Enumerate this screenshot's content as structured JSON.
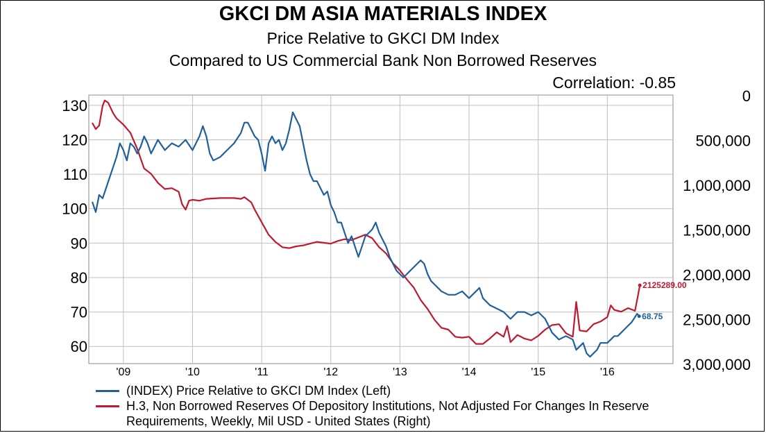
{
  "chart_data": {
    "type": "line",
    "title": "GKCI DM ASIA MATERIALS INDEX",
    "subtitle_lines": [
      "Price Relative to GKCI DM Index",
      "Compared to US Commercial Bank Non Borrowed Reserves"
    ],
    "annotation": "Correlation: -0.85",
    "x_ticks": [
      "'09",
      "'10",
      "'11",
      "'12",
      "'13",
      "'14",
      "'15",
      "'16"
    ],
    "x_range": [
      2008.5,
      2016.95
    ],
    "y_left": {
      "ticks": [
        130,
        120,
        110,
        100,
        90,
        80,
        70,
        60
      ],
      "range": [
        55,
        133
      ]
    },
    "y_right": {
      "ticks": [
        "0",
        "500,000",
        "1,000,000",
        "1,500,000",
        "2,000,000",
        "2,500,000",
        "3,000,000"
      ],
      "tick_values": [
        0,
        500000,
        1000000,
        1500000,
        2000000,
        2500000,
        3000000
      ],
      "inverted": true
    },
    "grid": true,
    "series": [
      {
        "name": "(INDEX) Price Relative to GKCI DM Index  (Left)",
        "axis": "left",
        "color": "#1F5F9B",
        "last_label": "68.75",
        "points": [
          [
            2008.55,
            102
          ],
          [
            2008.6,
            99
          ],
          [
            2008.65,
            104
          ],
          [
            2008.7,
            103
          ],
          [
            2008.75,
            106
          ],
          [
            2008.8,
            109
          ],
          [
            2008.85,
            112
          ],
          [
            2008.9,
            115
          ],
          [
            2008.95,
            119
          ],
          [
            2009.0,
            117
          ],
          [
            2009.05,
            114
          ],
          [
            2009.1,
            119
          ],
          [
            2009.15,
            118
          ],
          [
            2009.2,
            116
          ],
          [
            2009.25,
            118
          ],
          [
            2009.3,
            121
          ],
          [
            2009.35,
            119
          ],
          [
            2009.4,
            116
          ],
          [
            2009.45,
            118
          ],
          [
            2009.5,
            120
          ],
          [
            2009.6,
            117
          ],
          [
            2009.7,
            119
          ],
          [
            2009.8,
            118
          ],
          [
            2009.9,
            120
          ],
          [
            2010.0,
            117
          ],
          [
            2010.1,
            121
          ],
          [
            2010.15,
            124
          ],
          [
            2010.2,
            121
          ],
          [
            2010.25,
            116
          ],
          [
            2010.3,
            114
          ],
          [
            2010.4,
            115
          ],
          [
            2010.5,
            117
          ],
          [
            2010.6,
            119
          ],
          [
            2010.7,
            122
          ],
          [
            2010.75,
            125
          ],
          [
            2010.8,
            125
          ],
          [
            2010.85,
            123
          ],
          [
            2010.9,
            121
          ],
          [
            2010.95,
            120
          ],
          [
            2011.0,
            116
          ],
          [
            2011.05,
            111
          ],
          [
            2011.1,
            119
          ],
          [
            2011.15,
            121
          ],
          [
            2011.2,
            119
          ],
          [
            2011.25,
            120
          ],
          [
            2011.3,
            117
          ],
          [
            2011.35,
            119
          ],
          [
            2011.4,
            123
          ],
          [
            2011.45,
            128
          ],
          [
            2011.5,
            126
          ],
          [
            2011.55,
            124
          ],
          [
            2011.6,
            119
          ],
          [
            2011.65,
            114
          ],
          [
            2011.7,
            110
          ],
          [
            2011.75,
            108
          ],
          [
            2011.8,
            108
          ],
          [
            2011.85,
            106
          ],
          [
            2011.9,
            104
          ],
          [
            2011.95,
            105
          ],
          [
            2012.0,
            101
          ],
          [
            2012.05,
            99
          ],
          [
            2012.1,
            96
          ],
          [
            2012.15,
            96
          ],
          [
            2012.2,
            93
          ],
          [
            2012.25,
            90
          ],
          [
            2012.3,
            92
          ],
          [
            2012.35,
            89
          ],
          [
            2012.4,
            86
          ],
          [
            2012.45,
            89
          ],
          [
            2012.5,
            92
          ],
          [
            2012.55,
            93
          ],
          [
            2012.6,
            94
          ],
          [
            2012.65,
            96
          ],
          [
            2012.7,
            93
          ],
          [
            2012.75,
            91
          ],
          [
            2012.8,
            89
          ],
          [
            2012.85,
            86
          ],
          [
            2012.9,
            84
          ],
          [
            2012.95,
            82
          ],
          [
            2013.0,
            81
          ],
          [
            2013.05,
            80
          ],
          [
            2013.1,
            81
          ],
          [
            2013.15,
            82
          ],
          [
            2013.2,
            83
          ],
          [
            2013.25,
            84
          ],
          [
            2013.3,
            85
          ],
          [
            2013.35,
            84
          ],
          [
            2013.4,
            81
          ],
          [
            2013.45,
            79
          ],
          [
            2013.5,
            78
          ],
          [
            2013.55,
            77
          ],
          [
            2013.6,
            76
          ],
          [
            2013.7,
            75
          ],
          [
            2013.8,
            75
          ],
          [
            2013.9,
            76
          ],
          [
            2014.0,
            74
          ],
          [
            2014.1,
            76
          ],
          [
            2014.15,
            77
          ],
          [
            2014.2,
            74
          ],
          [
            2014.3,
            72
          ],
          [
            2014.4,
            71
          ],
          [
            2014.5,
            70
          ],
          [
            2014.6,
            68
          ],
          [
            2014.65,
            69
          ],
          [
            2014.7,
            70
          ],
          [
            2014.8,
            70
          ],
          [
            2014.9,
            69
          ],
          [
            2015.0,
            70
          ],
          [
            2015.05,
            69
          ],
          [
            2015.1,
            68
          ],
          [
            2015.2,
            64
          ],
          [
            2015.3,
            62
          ],
          [
            2015.4,
            63
          ],
          [
            2015.5,
            62
          ],
          [
            2015.55,
            59
          ],
          [
            2015.6,
            60
          ],
          [
            2015.65,
            61
          ],
          [
            2015.7,
            58
          ],
          [
            2015.75,
            57
          ],
          [
            2015.8,
            58
          ],
          [
            2015.85,
            59
          ],
          [
            2015.9,
            61
          ],
          [
            2016.0,
            61
          ],
          [
            2016.05,
            62
          ],
          [
            2016.1,
            63
          ],
          [
            2016.15,
            63
          ],
          [
            2016.2,
            64
          ],
          [
            2016.25,
            65
          ],
          [
            2016.3,
            66
          ],
          [
            2016.35,
            67
          ],
          [
            2016.4,
            68.5
          ],
          [
            2016.43,
            69.5
          ],
          [
            2016.46,
            68.75
          ]
        ]
      },
      {
        "name": "H.3, Non Borrowed Reserves Of Depository Institutions, Not Adjusted For Changes In Reserve Requirements, Weekly, Mil USD - United States  (Right)",
        "axis": "right",
        "color": "#C0182E",
        "last_label": "2125289.00",
        "points": [
          [
            2008.55,
            310000
          ],
          [
            2008.6,
            380000
          ],
          [
            2008.65,
            340000
          ],
          [
            2008.7,
            120000
          ],
          [
            2008.73,
            60000
          ],
          [
            2008.78,
            85000
          ],
          [
            2008.85,
            200000
          ],
          [
            2008.9,
            260000
          ],
          [
            2009.0,
            330000
          ],
          [
            2009.1,
            420000
          ],
          [
            2009.2,
            600000
          ],
          [
            2009.3,
            820000
          ],
          [
            2009.4,
            880000
          ],
          [
            2009.5,
            980000
          ],
          [
            2009.6,
            1050000
          ],
          [
            2009.7,
            1040000
          ],
          [
            2009.8,
            1080000
          ],
          [
            2009.85,
            1220000
          ],
          [
            2009.9,
            1280000
          ],
          [
            2009.95,
            1180000
          ],
          [
            2010.0,
            1170000
          ],
          [
            2010.1,
            1180000
          ],
          [
            2010.2,
            1160000
          ],
          [
            2010.4,
            1150000
          ],
          [
            2010.6,
            1150000
          ],
          [
            2010.7,
            1160000
          ],
          [
            2010.75,
            1140000
          ],
          [
            2010.8,
            1170000
          ],
          [
            2010.85,
            1200000
          ],
          [
            2010.9,
            1280000
          ],
          [
            2011.0,
            1420000
          ],
          [
            2011.1,
            1560000
          ],
          [
            2011.2,
            1640000
          ],
          [
            2011.3,
            1700000
          ],
          [
            2011.4,
            1710000
          ],
          [
            2011.5,
            1690000
          ],
          [
            2011.6,
            1680000
          ],
          [
            2011.7,
            1660000
          ],
          [
            2011.8,
            1640000
          ],
          [
            2011.9,
            1650000
          ],
          [
            2012.0,
            1660000
          ],
          [
            2012.1,
            1630000
          ],
          [
            2012.2,
            1610000
          ],
          [
            2012.3,
            1620000
          ],
          [
            2012.4,
            1590000
          ],
          [
            2012.5,
            1560000
          ],
          [
            2012.6,
            1600000
          ],
          [
            2012.7,
            1700000
          ],
          [
            2012.8,
            1770000
          ],
          [
            2012.9,
            1880000
          ],
          [
            2013.0,
            1960000
          ],
          [
            2013.1,
            2060000
          ],
          [
            2013.2,
            2150000
          ],
          [
            2013.3,
            2290000
          ],
          [
            2013.4,
            2390000
          ],
          [
            2013.5,
            2510000
          ],
          [
            2013.6,
            2600000
          ],
          [
            2013.7,
            2620000
          ],
          [
            2013.8,
            2700000
          ],
          [
            2013.9,
            2710000
          ],
          [
            2014.0,
            2700000
          ],
          [
            2014.1,
            2780000
          ],
          [
            2014.2,
            2780000
          ],
          [
            2014.3,
            2720000
          ],
          [
            2014.4,
            2650000
          ],
          [
            2014.5,
            2700000
          ],
          [
            2014.55,
            2580000
          ],
          [
            2014.6,
            2760000
          ],
          [
            2014.7,
            2680000
          ],
          [
            2014.8,
            2720000
          ],
          [
            2014.9,
            2740000
          ],
          [
            2015.0,
            2690000
          ],
          [
            2015.1,
            2620000
          ],
          [
            2015.2,
            2570000
          ],
          [
            2015.3,
            2560000
          ],
          [
            2015.4,
            2660000
          ],
          [
            2015.5,
            2700000
          ],
          [
            2015.55,
            2310000
          ],
          [
            2015.6,
            2630000
          ],
          [
            2015.7,
            2640000
          ],
          [
            2015.8,
            2560000
          ],
          [
            2015.9,
            2530000
          ],
          [
            2016.0,
            2480000
          ],
          [
            2016.05,
            2350000
          ],
          [
            2016.1,
            2400000
          ],
          [
            2016.2,
            2420000
          ],
          [
            2016.3,
            2380000
          ],
          [
            2016.4,
            2410000
          ],
          [
            2016.44,
            2250000
          ],
          [
            2016.47,
            2125289
          ]
        ]
      }
    ]
  }
}
